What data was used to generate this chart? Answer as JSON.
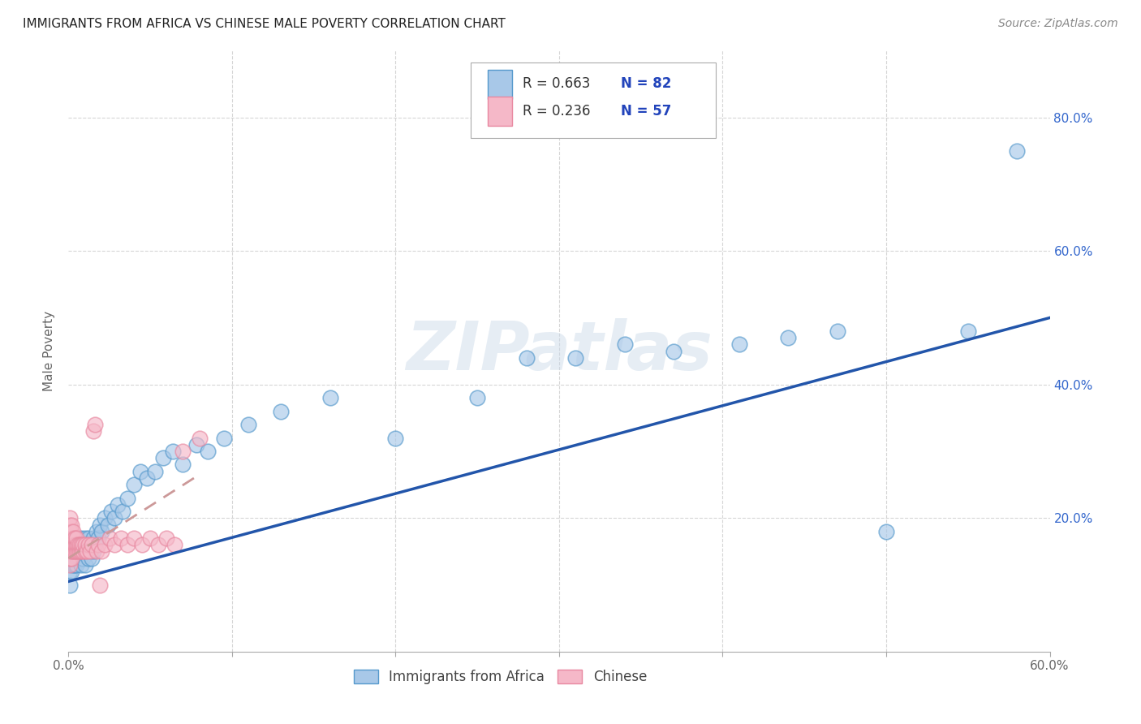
{
  "title": "IMMIGRANTS FROM AFRICA VS CHINESE MALE POVERTY CORRELATION CHART",
  "source": "Source: ZipAtlas.com",
  "ylabel": "Male Poverty",
  "xlim": [
    0.0,
    0.6
  ],
  "ylim": [
    0.0,
    0.9
  ],
  "xticks": [
    0.0,
    0.1,
    0.2,
    0.3,
    0.4,
    0.5,
    0.6
  ],
  "xticklabels": [
    "0.0%",
    "",
    "",
    "",
    "",
    "",
    "60.0%"
  ],
  "yticks_right": [
    0.2,
    0.4,
    0.6,
    0.8
  ],
  "yticklabels_right": [
    "20.0%",
    "40.0%",
    "60.0%",
    "80.0%"
  ],
  "grid_color": "#cccccc",
  "background_color": "#ffffff",
  "watermark_text": "ZIPatlas",
  "legend_label1": "Immigrants from Africa",
  "legend_label2": "Chinese",
  "blue_fill": "#a8c8e8",
  "blue_edge": "#5599cc",
  "pink_fill": "#f5b8c8",
  "pink_edge": "#e888a0",
  "blue_line_color": "#2255aa",
  "pink_line_color": "#cc9999",
  "legend_text_color": "#2244bb",
  "legend_r_color": "#333333",
  "title_color": "#222222",
  "source_color": "#888888",
  "ylabel_color": "#666666",
  "tick_color": "#666666",
  "right_tick_color": "#3366cc",
  "africa_x": [
    0.001,
    0.001,
    0.001,
    0.001,
    0.002,
    0.002,
    0.002,
    0.002,
    0.002,
    0.003,
    0.003,
    0.003,
    0.003,
    0.003,
    0.004,
    0.004,
    0.004,
    0.004,
    0.005,
    0.005,
    0.005,
    0.005,
    0.006,
    0.006,
    0.006,
    0.007,
    0.007,
    0.007,
    0.008,
    0.008,
    0.008,
    0.009,
    0.009,
    0.01,
    0.01,
    0.01,
    0.011,
    0.011,
    0.012,
    0.012,
    0.013,
    0.013,
    0.014,
    0.015,
    0.015,
    0.016,
    0.017,
    0.018,
    0.019,
    0.02,
    0.022,
    0.024,
    0.026,
    0.028,
    0.03,
    0.033,
    0.036,
    0.04,
    0.044,
    0.048,
    0.053,
    0.058,
    0.064,
    0.07,
    0.078,
    0.085,
    0.095,
    0.11,
    0.13,
    0.16,
    0.2,
    0.25,
    0.28,
    0.31,
    0.34,
    0.37,
    0.41,
    0.44,
    0.47,
    0.5,
    0.55,
    0.58
  ],
  "africa_y": [
    0.12,
    0.14,
    0.15,
    0.1,
    0.13,
    0.15,
    0.17,
    0.12,
    0.16,
    0.14,
    0.16,
    0.13,
    0.15,
    0.17,
    0.14,
    0.16,
    0.13,
    0.15,
    0.14,
    0.16,
    0.15,
    0.13,
    0.15,
    0.17,
    0.14,
    0.15,
    0.16,
    0.14,
    0.15,
    0.17,
    0.13,
    0.16,
    0.14,
    0.15,
    0.17,
    0.13,
    0.16,
    0.15,
    0.17,
    0.14,
    0.16,
    0.15,
    0.14,
    0.17,
    0.15,
    0.16,
    0.18,
    0.17,
    0.19,
    0.18,
    0.2,
    0.19,
    0.21,
    0.2,
    0.22,
    0.21,
    0.23,
    0.25,
    0.27,
    0.26,
    0.27,
    0.29,
    0.3,
    0.28,
    0.31,
    0.3,
    0.32,
    0.34,
    0.36,
    0.38,
    0.32,
    0.38,
    0.44,
    0.44,
    0.46,
    0.45,
    0.46,
    0.47,
    0.48,
    0.18,
    0.48,
    0.75
  ],
  "chinese_x": [
    0.001,
    0.001,
    0.001,
    0.001,
    0.001,
    0.001,
    0.001,
    0.001,
    0.002,
    0.002,
    0.002,
    0.002,
    0.002,
    0.002,
    0.003,
    0.003,
    0.003,
    0.003,
    0.004,
    0.004,
    0.004,
    0.005,
    0.005,
    0.005,
    0.006,
    0.006,
    0.007,
    0.007,
    0.008,
    0.008,
    0.009,
    0.009,
    0.01,
    0.01,
    0.011,
    0.012,
    0.013,
    0.014,
    0.015,
    0.016,
    0.017,
    0.018,
    0.019,
    0.02,
    0.022,
    0.025,
    0.028,
    0.032,
    0.036,
    0.04,
    0.045,
    0.05,
    0.055,
    0.06,
    0.065,
    0.07,
    0.08
  ],
  "chinese_y": [
    0.13,
    0.14,
    0.15,
    0.16,
    0.17,
    0.18,
    0.19,
    0.2,
    0.14,
    0.15,
    0.16,
    0.17,
    0.18,
    0.19,
    0.15,
    0.16,
    0.17,
    0.18,
    0.15,
    0.16,
    0.17,
    0.15,
    0.16,
    0.17,
    0.15,
    0.16,
    0.15,
    0.16,
    0.15,
    0.16,
    0.15,
    0.16,
    0.15,
    0.16,
    0.15,
    0.16,
    0.15,
    0.16,
    0.33,
    0.34,
    0.15,
    0.16,
    0.1,
    0.15,
    0.16,
    0.17,
    0.16,
    0.17,
    0.16,
    0.17,
    0.16,
    0.17,
    0.16,
    0.17,
    0.16,
    0.3,
    0.32
  ],
  "blue_line_x0": 0.0,
  "blue_line_y0": 0.105,
  "blue_line_x1": 0.6,
  "blue_line_y1": 0.5,
  "pink_line_x0": 0.0,
  "pink_line_y0": 0.14,
  "pink_line_x1": 0.08,
  "pink_line_y1": 0.265
}
